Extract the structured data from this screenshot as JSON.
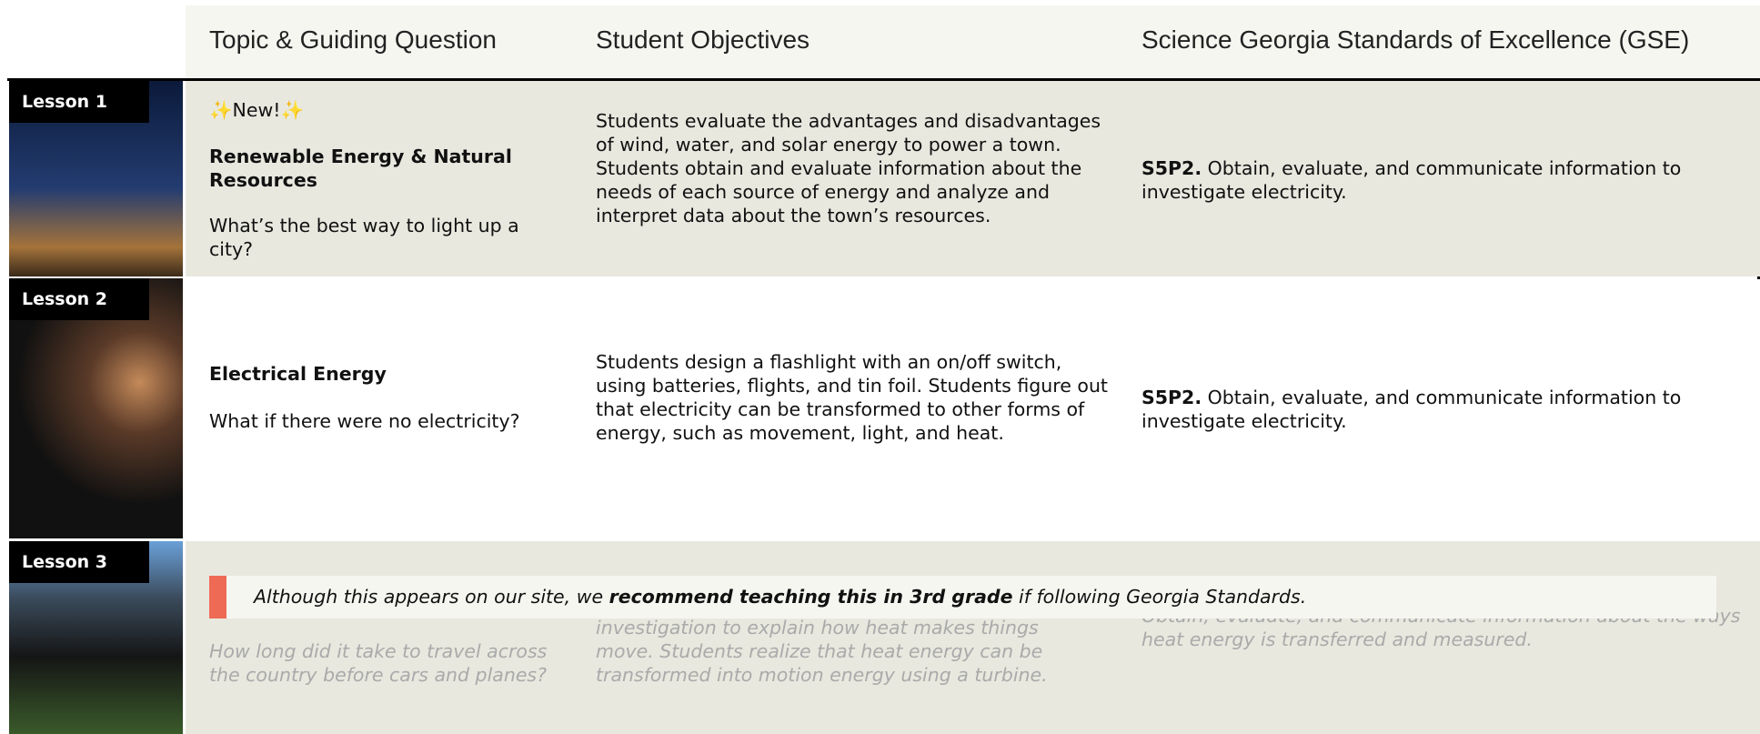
{
  "header": {
    "columns": [
      "Topic & Guiding Question",
      "Student Objectives",
      "Science Georgia Standards of Excellence (GSE)"
    ]
  },
  "lessons": [
    {
      "label": "Lesson 1",
      "badge": "✨New!✨",
      "topic": "Renewable Energy & Natural Resources",
      "question": "What’s the best way to light up a city?",
      "objectives": "Students evaluate the advantages and disadvantages of wind, water, and solar energy to power a town. Students obtain and evaluate information about the needs of each source of energy and analyze and interpret data about the town’s resources.",
      "standard_code": "S5P2.",
      "standard_text": "Obtain, evaluate, and communicate information to investigate electricity."
    },
    {
      "label": "Lesson 2",
      "topic": "Electrical Energy",
      "question": "What if there were no electricity?",
      "objectives": "Students design a flashlight with an on/off switch, using batteries, flights, and tin foil. Students figure out that electricity can be transformed to other forms of energy, such as movement, light, and heat.",
      "standard_code": "S5P2.",
      "standard_text": "Obtain, evaluate, and communicate information to investigate electricity."
    },
    {
      "label": "Lesson 3",
      "question": "How long did it take to travel across the country before cars and planes?",
      "objectives": "investigation to explain how heat makes things move. Students realize that heat energy can be transformed into motion energy using a turbine.",
      "standard_text": "Obtain, evaluate, and communicate information about the ways heat energy is transferred and measured."
    }
  ],
  "notice": {
    "before": "Although this appears on our site, we ",
    "bold": "recommend teaching this in 3rd grade",
    "after": " if following Georgia Standards."
  }
}
